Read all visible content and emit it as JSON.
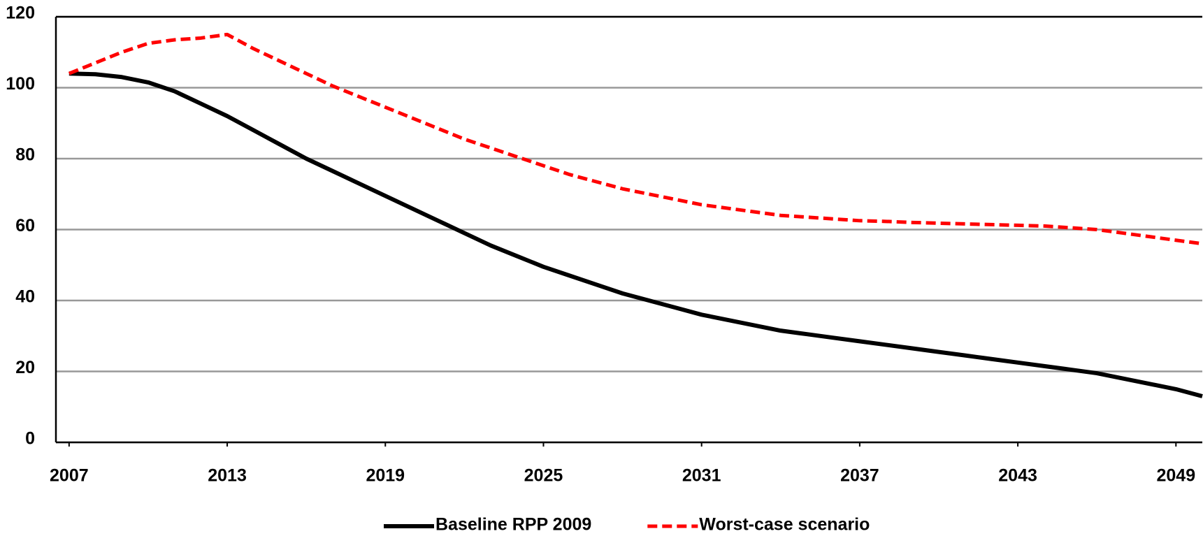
{
  "chart_data": {
    "type": "line",
    "x": [
      2007,
      2008,
      2009,
      2010,
      2011,
      2012,
      2013,
      2014,
      2015,
      2016,
      2017,
      2018,
      2019,
      2020,
      2021,
      2022,
      2023,
      2024,
      2025,
      2026,
      2027,
      2028,
      2029,
      2030,
      2031,
      2032,
      2033,
      2034,
      2035,
      2036,
      2037,
      2038,
      2039,
      2040,
      2041,
      2042,
      2043,
      2044,
      2045,
      2046,
      2047,
      2048,
      2049,
      2050
    ],
    "series": [
      {
        "name": "Baseline RPP 2009",
        "color": "#000000",
        "dash": false,
        "values": [
          104,
          103.8,
          103,
          101.5,
          99,
          95.5,
          92,
          88,
          84,
          80,
          76.5,
          73,
          69.5,
          66,
          62.5,
          59,
          55.5,
          52.5,
          49.5,
          47,
          44.5,
          42,
          40,
          38,
          36,
          34.5,
          33,
          31.5,
          30.5,
          29.5,
          28.5,
          27.5,
          26.5,
          25.5,
          24.5,
          23.5,
          22.5,
          21.5,
          20.5,
          19.5,
          18,
          16.5,
          15,
          13
        ]
      },
      {
        "name": "Worst-case scenario",
        "color": "#ff0000",
        "dash": true,
        "values": [
          104,
          107,
          110,
          112.5,
          113.5,
          114,
          115,
          111,
          107.5,
          104,
          100.5,
          97.5,
          94.5,
          91.5,
          88.5,
          85.5,
          83,
          80.5,
          78,
          75.5,
          73.5,
          71.5,
          70,
          68.5,
          67,
          66,
          65,
          64,
          63.5,
          63,
          62.5,
          62.3,
          62,
          61.8,
          61.6,
          61.4,
          61.2,
          61,
          60.5,
          60,
          59,
          58,
          57,
          56
        ]
      }
    ],
    "xlim": [
      2006.5,
      2050
    ],
    "xticks": [
      2007,
      2013,
      2019,
      2025,
      2031,
      2037,
      2043,
      2049
    ],
    "ylim": [
      0,
      120
    ],
    "yticks": [
      0,
      20,
      40,
      60,
      80,
      100,
      120
    ],
    "grid": true,
    "legend": "bottom"
  }
}
